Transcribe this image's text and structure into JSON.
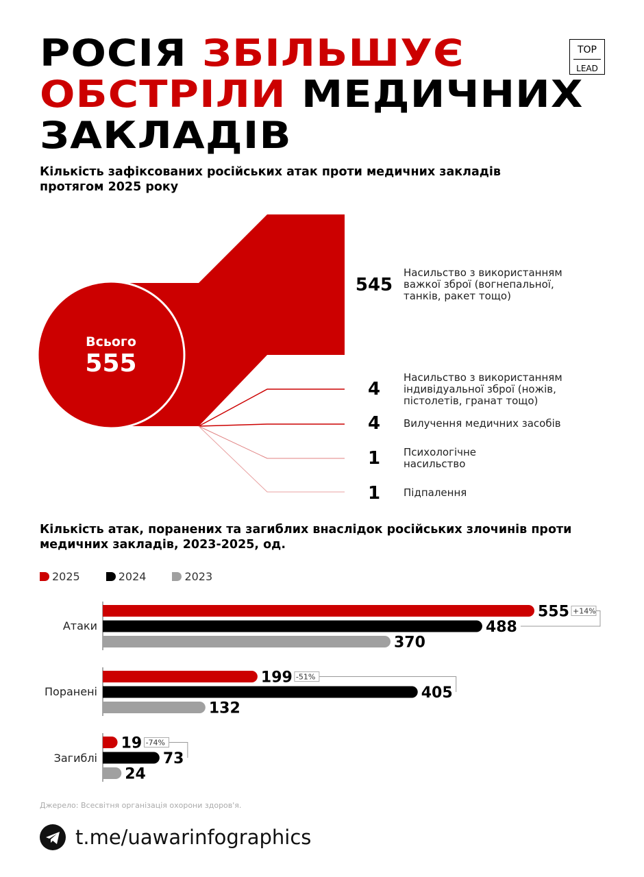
{
  "title": {
    "line1_black": "РОСІЯ",
    "line1_red": "ЗБІЛЬШУЄ",
    "line2_red": "ОБСТРІЛИ",
    "line2_black": "МЕДИЧНИХ",
    "line3_black": "ЗАКЛАДІВ"
  },
  "logo": {
    "top": "TOP",
    "bottom": "LEAD"
  },
  "subtitle1": "Кількість зафіксованих російських атак проти медичних закладів протягом 2025 року",
  "subtitle2": "Кількість атак, поранених та загиблих внаслідок російських злочинів проти медичних закладів, 2023-2025, од.",
  "colors": {
    "red": "#cc0000",
    "black": "#000000",
    "gray": "#a0a0a0"
  },
  "chart_data": [
    {
      "type": "sankey",
      "total_label": "Всього",
      "total": 555,
      "items": [
        {
          "value": 545,
          "label": "Насильство з використанням важкої зброї (вогнепальної, танків, ракет тощо)"
        },
        {
          "value": 4,
          "label": "Насильство з використанням індивідуальної зброї (ножів, пістолетів, гранат тощо)"
        },
        {
          "value": 4,
          "label": "Вилучення медичних засобів"
        },
        {
          "value": 1,
          "label": "Психологічне насильство"
        },
        {
          "value": 1,
          "label": "Підпалення"
        }
      ]
    },
    {
      "type": "bar",
      "orientation": "horizontal",
      "legend": [
        "2025",
        "2024",
        "2023"
      ],
      "categories": [
        "Атаки",
        "Поранені",
        "Загиблі"
      ],
      "series": [
        {
          "name": "2025",
          "values": [
            555,
            199,
            19
          ]
        },
        {
          "name": "2024",
          "values": [
            488,
            405,
            73
          ]
        },
        {
          "name": "2023",
          "values": [
            370,
            132,
            24
          ]
        }
      ],
      "changes": [
        "+14%",
        "-51%",
        "-74%"
      ]
    }
  ],
  "source": "Джерело: Всесвітня організація охорони здоров'я.",
  "footer_link": "t.me/uawarinfographics"
}
